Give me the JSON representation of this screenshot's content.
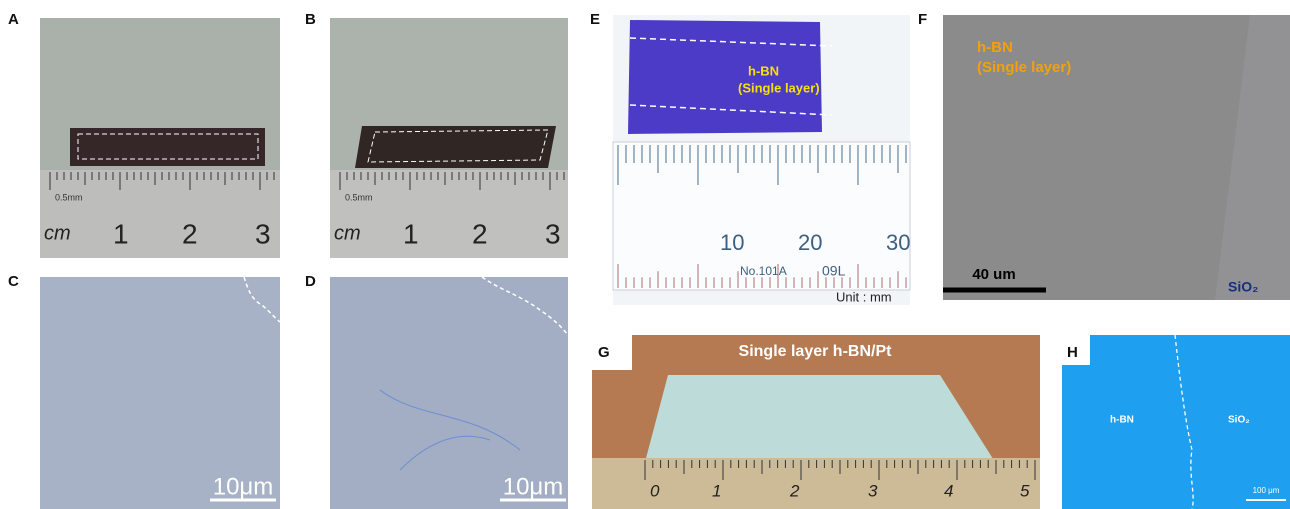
{
  "panels": [
    {
      "label": "A",
      "ruler_labels": [
        "0.5mm",
        "cm",
        "1",
        "2",
        "3"
      ]
    },
    {
      "label": "B",
      "ruler_labels": [
        "0.5mm",
        "cm",
        "1",
        "2",
        "3"
      ]
    },
    {
      "label": "C",
      "scale_bar": "10μm"
    },
    {
      "label": "D",
      "scale_bar": "10μm"
    },
    {
      "label": "E",
      "sample_label": [
        "h-BN",
        "(Single layer)"
      ],
      "ruler_labels": [
        "10",
        "20",
        "30",
        "No.101A",
        "09L"
      ],
      "unit": "Unit : mm"
    },
    {
      "label": "F",
      "sample_label": [
        "h-BN",
        "(Single layer)"
      ],
      "scale_bar": "40 um",
      "substrate": "SiO₂"
    },
    {
      "label": "G",
      "caption": "Single layer h-BN/Pt",
      "ruler_labels": [
        "0",
        "1",
        "2",
        "3",
        "4",
        "5"
      ]
    },
    {
      "label": "H",
      "region_labels": [
        "h-BN",
        "SiO₂"
      ],
      "scale_bar": "100 μm"
    }
  ]
}
